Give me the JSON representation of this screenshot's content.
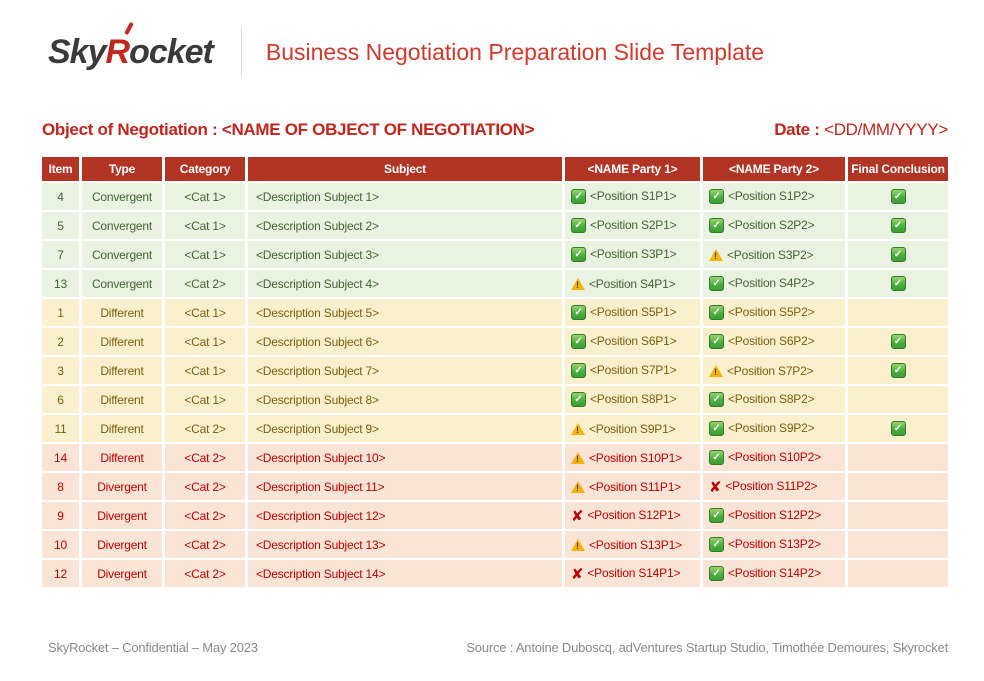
{
  "brand": {
    "logo_sky": "Sky",
    "logo_r": "R",
    "logo_ocket": "ocket",
    "logo_accent_icon": "acute-accent-mark",
    "title": "Business Negotiation Preparation Slide Template"
  },
  "subheader": {
    "object_label": "Object of Negotiation :",
    "object_value": "<NAME OF OBJECT OF NEGOTIATION>",
    "date_label": "Date :",
    "date_value": "<DD/MM/YYYY>"
  },
  "table": {
    "columns": [
      "Item",
      "Type",
      "Category",
      "Subject",
      "<NAME Party 1>",
      "<NAME Party 2>",
      "Final Conclusion"
    ],
    "icon_legend": {
      "check": "green-check-icon",
      "warning": "yellow-warning-triangle-icon",
      "cross": "red-cross-icon",
      "none": "empty"
    },
    "rows": [
      {
        "item": "4",
        "type": "Convergent",
        "category": "<Cat 1>",
        "subject": "<Description Subject 1>",
        "p1_icon": "check",
        "p1": "<Position S1P1>",
        "p2_icon": "check",
        "p2": "<Position S1P2>",
        "final_icon": "check",
        "theme": "green"
      },
      {
        "item": "5",
        "type": "Convergent",
        "category": "<Cat 1>",
        "subject": "<Description Subject 2>",
        "p1_icon": "check",
        "p1": "<Position S2P1>",
        "p2_icon": "check",
        "p2": "<Position S2P2>",
        "final_icon": "check",
        "theme": "green"
      },
      {
        "item": "7",
        "type": "Convergent",
        "category": "<Cat 1>",
        "subject": "<Description Subject 3>",
        "p1_icon": "check",
        "p1": "<Position S3P1>",
        "p2_icon": "warning",
        "p2": "<Position S3P2>",
        "final_icon": "check",
        "theme": "green"
      },
      {
        "item": "13",
        "type": "Convergent",
        "category": "<Cat 2>",
        "subject": "<Description Subject 4>",
        "p1_icon": "warning",
        "p1": "<Position S4P1>",
        "p2_icon": "check",
        "p2": "<Position S4P2>",
        "final_icon": "check",
        "theme": "green"
      },
      {
        "item": "1",
        "type": "Different",
        "category": "<Cat 1>",
        "subject": "<Description Subject 5>",
        "p1_icon": "check",
        "p1": "<Position S5P1>",
        "p2_icon": "check",
        "p2": "<Position S5P2>",
        "final_icon": "none",
        "theme": "cream"
      },
      {
        "item": "2",
        "type": "Different",
        "category": "<Cat 1>",
        "subject": "<Description Subject 6>",
        "p1_icon": "check",
        "p1": "<Position S6P1>",
        "p2_icon": "check",
        "p2": "<Position S6P2>",
        "final_icon": "check",
        "theme": "cream"
      },
      {
        "item": "3",
        "type": "Different",
        "category": "<Cat 1>",
        "subject": "<Description Subject 7>",
        "p1_icon": "check",
        "p1": "<Position S7P1>",
        "p2_icon": "warning",
        "p2": "<Position S7P2>",
        "final_icon": "check",
        "theme": "cream"
      },
      {
        "item": "6",
        "type": "Different",
        "category": "<Cat 1>",
        "subject": "<Description Subject 8>",
        "p1_icon": "check",
        "p1": "<Position S8P1>",
        "p2_icon": "check",
        "p2": "<Position S8P2>",
        "final_icon": "none",
        "theme": "cream"
      },
      {
        "item": "11",
        "type": "Different",
        "category": "<Cat 2>",
        "subject": "<Description Subject 9>",
        "p1_icon": "warning",
        "p1": "<Position S9P1>",
        "p2_icon": "check",
        "p2": "<Position S9P2>",
        "final_icon": "check",
        "theme": "cream"
      },
      {
        "item": "14",
        "type": "Different",
        "category": "<Cat 2>",
        "subject": "<Description Subject 10>",
        "p1_icon": "warning",
        "p1": "<Position S10P1>",
        "p2_icon": "check",
        "p2": "<Position S10P2>",
        "final_icon": "none",
        "theme": "pink"
      },
      {
        "item": "8",
        "type": "Divergent",
        "category": "<Cat 2>",
        "subject": "<Description Subject 11>",
        "p1_icon": "warning",
        "p1": "<Position S11P1>",
        "p2_icon": "cross",
        "p2": "<Position S11P2>",
        "final_icon": "none",
        "theme": "pink"
      },
      {
        "item": "9",
        "type": "Divergent",
        "category": "<Cat 2>",
        "subject": "<Description Subject 12>",
        "p1_icon": "cross",
        "p1": "<Position S12P1>",
        "p2_icon": "check",
        "p2": "<Position S12P2>",
        "final_icon": "none",
        "theme": "pink"
      },
      {
        "item": "10",
        "type": "Divergent",
        "category": "<Cat 2>",
        "subject": "<Description Subject 13>",
        "p1_icon": "warning",
        "p1": "<Position S13P1>",
        "p2_icon": "check",
        "p2": "<Position S13P2>",
        "final_icon": "none",
        "theme": "pink"
      },
      {
        "item": "12",
        "type": "Divergent",
        "category": "<Cat 2>",
        "subject": "<Description Subject 14>",
        "p1_icon": "cross",
        "p1": "<Position S14P1>",
        "p2_icon": "check",
        "p2": "<Position S14P2>",
        "final_icon": "none",
        "theme": "pink"
      }
    ]
  },
  "footer": {
    "left": "SkyRocket – Confidential – May 2023",
    "right": "Source : Antoine Duboscq, adVentures Startup Studio, Timothée Demoures, Skyrocket"
  },
  "colors": {
    "header_red": "#b23425",
    "title_red": "#d2382c",
    "subheader_red": "#c1251c",
    "row_green_bg": "#eaf2e2",
    "row_green_text": "#40662e",
    "row_cream_bg": "#faf0cd",
    "row_cream_text": "#7c6010",
    "row_pink_bg": "#f9e4d5",
    "row_pink_text": "#c00000",
    "check_green": "#4caf41",
    "warning_yellow": "#f4b30d",
    "cross_red": "#c00000",
    "footer_gray": "#8a8a8a"
  }
}
